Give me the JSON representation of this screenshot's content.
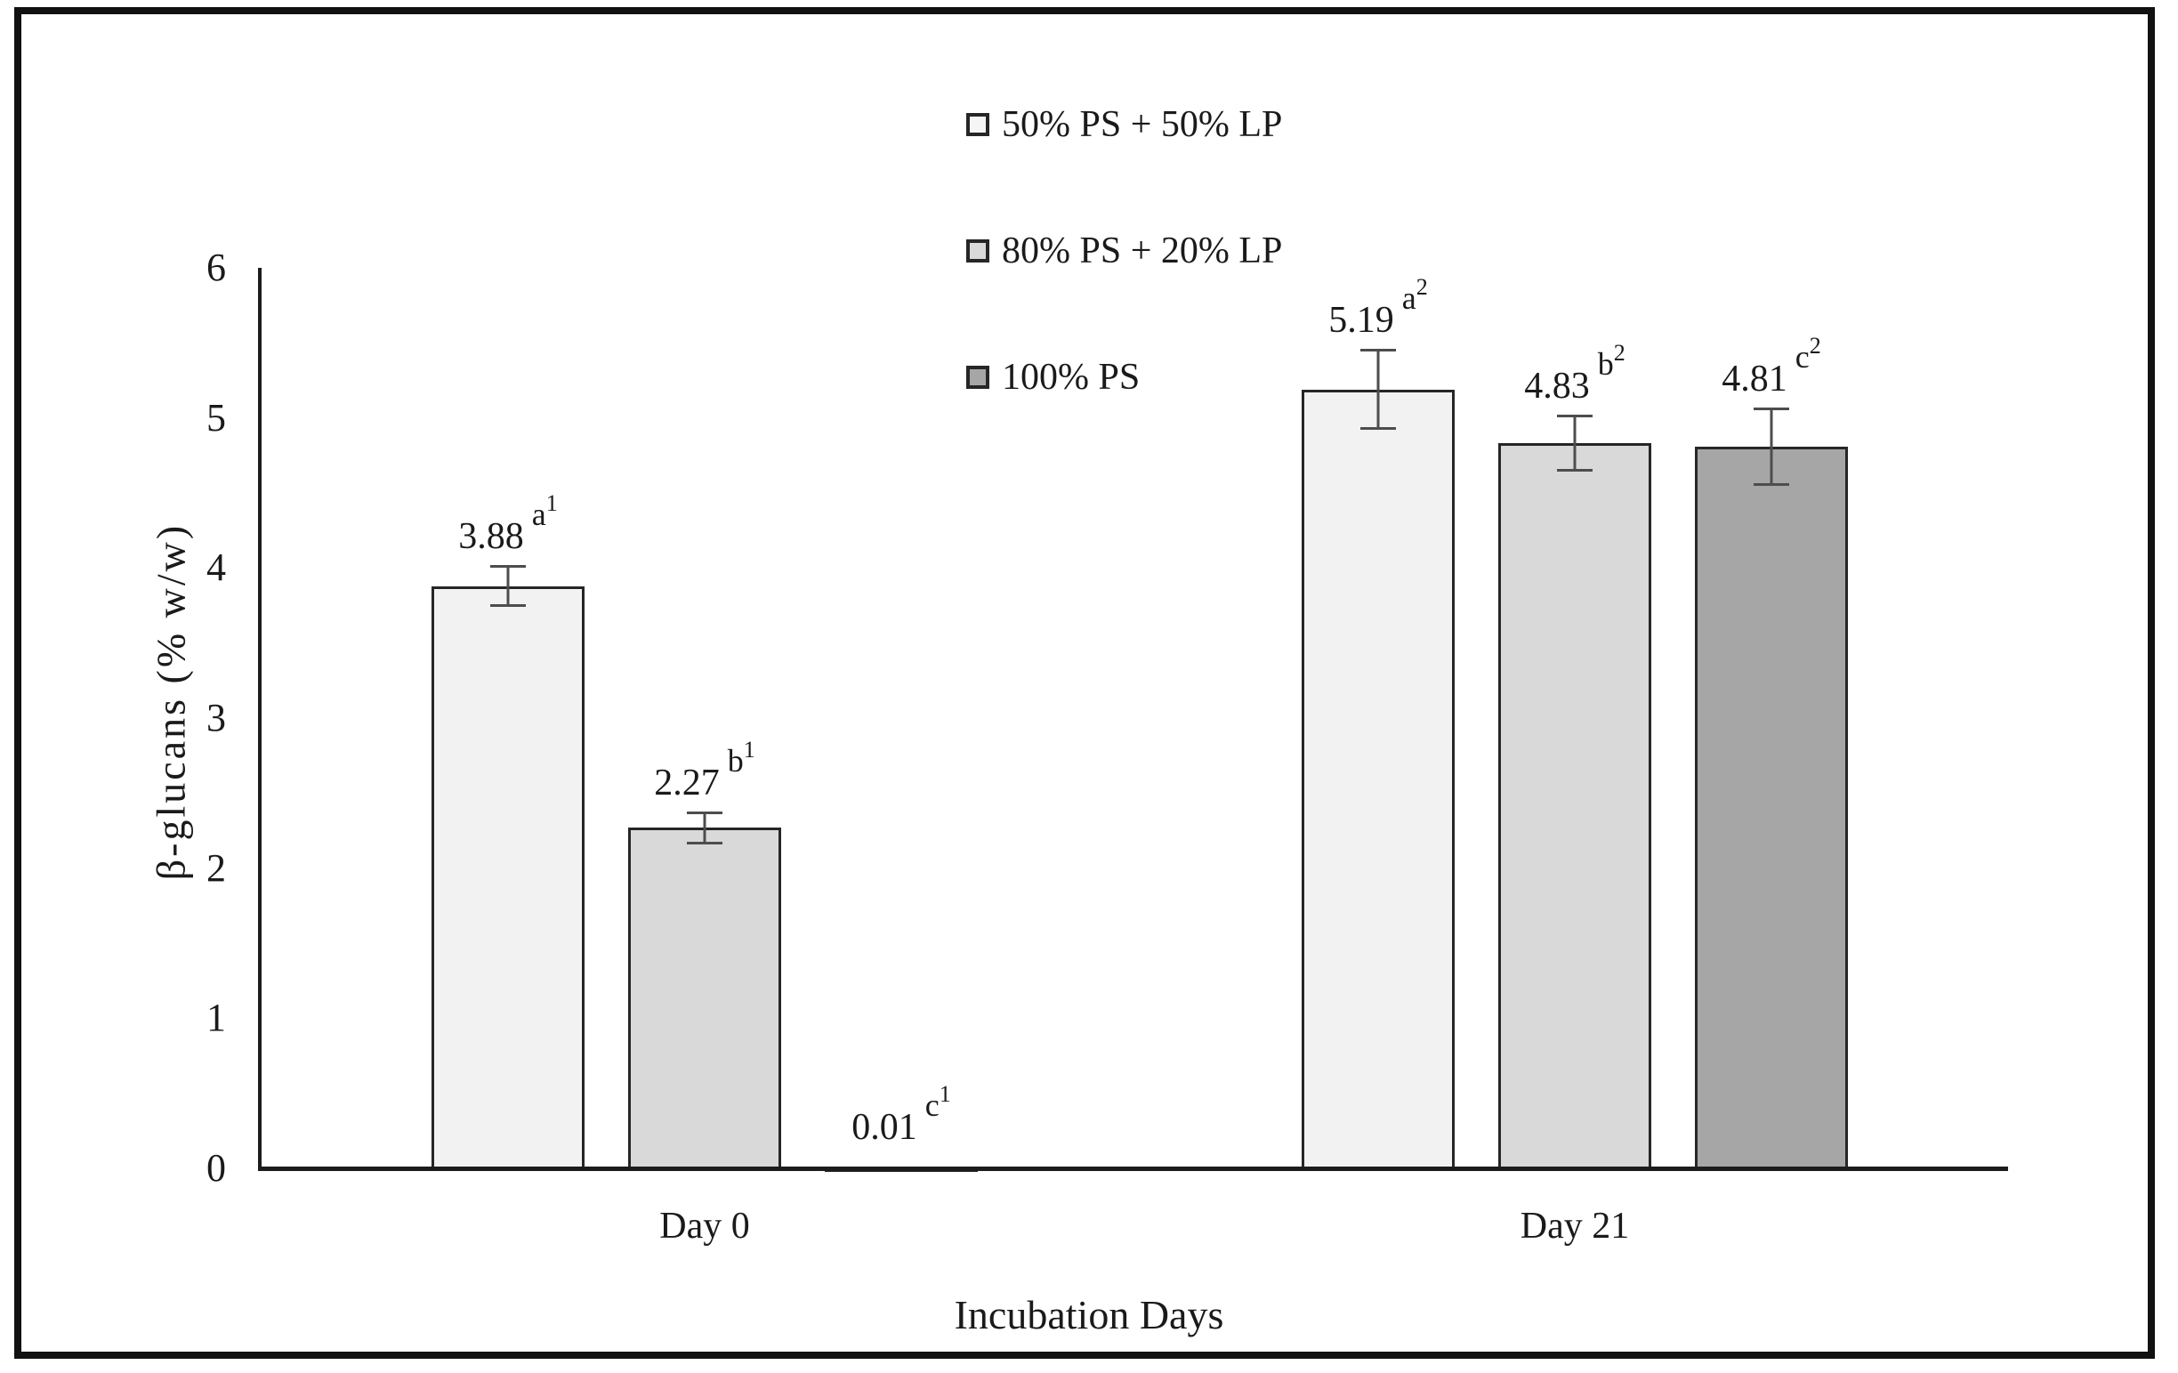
{
  "figure": {
    "y_axis_title": "β-glucans (% w/w)",
    "x_axis_title": "Incubation Days",
    "category_labels": [
      "Day 0",
      "Day 21"
    ]
  },
  "legend": {
    "items": [
      {
        "label": "50% PS + 50% LP",
        "color": "#f5f5f5"
      },
      {
        "label": "80% PS + 20% LP",
        "color": "#d9d9d9"
      },
      {
        "label": "100% PS",
        "color": "#a6a6a6"
      }
    ]
  },
  "chart_data": {
    "type": "bar",
    "title": "",
    "xlabel": "Incubation Days",
    "ylabel": "β-glucans (% w/w)",
    "categories": [
      "Day 0",
      "Day 21"
    ],
    "y_ticks": [
      0,
      1,
      2,
      3,
      4,
      5,
      6
    ],
    "ylim": [
      0,
      6
    ],
    "grid": false,
    "legend_position": "top-center",
    "series": [
      {
        "name": "50% PS + 50% LP",
        "color": "#f2f2f2",
        "values": [
          3.88,
          5.19
        ],
        "errors": [
          0.14,
          0.27
        ],
        "annotations": [
          "a1",
          "a2"
        ]
      },
      {
        "name": "80% PS + 20% LP",
        "color": "#d9d9d9",
        "values": [
          2.27,
          4.83
        ],
        "errors": [
          0.11,
          0.19
        ],
        "annotations": [
          "b1",
          "b2"
        ]
      },
      {
        "name": "100% PS",
        "color": "#a6a6a6",
        "values": [
          0.01,
          4.81
        ],
        "errors": [
          0,
          0.26
        ],
        "annotations": [
          "c1",
          "c2"
        ]
      }
    ]
  }
}
